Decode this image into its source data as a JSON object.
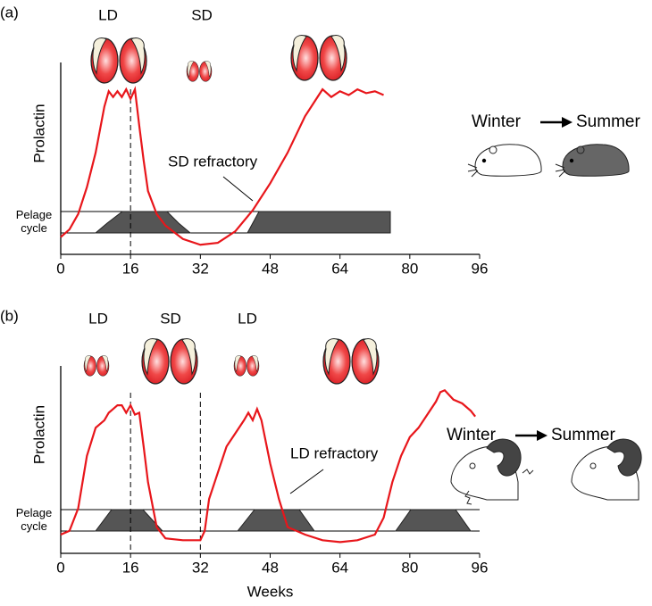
{
  "chart_data": [
    {
      "type": "line",
      "panel": "(a)",
      "ylabel": "Prolactin",
      "pelage_label": [
        "Pelage",
        "cycle"
      ],
      "photoperiods": [
        "LD",
        "SD"
      ],
      "annotation": "SD refractory",
      "seasons": [
        "Winter",
        "Summer"
      ],
      "xlim": [
        0,
        96
      ],
      "xticks": [
        0,
        16,
        32,
        48,
        64,
        80,
        96
      ],
      "ylim": [
        0,
        100
      ],
      "vlines": [
        16
      ],
      "series": [
        {
          "color": "#e8161b",
          "x": [
            0,
            2,
            4,
            6,
            8,
            10,
            11,
            12,
            13,
            14,
            15,
            16,
            17,
            18,
            19,
            20,
            22,
            24,
            28,
            32,
            36,
            40,
            44,
            48,
            52,
            56,
            58,
            60,
            62,
            64,
            66,
            68,
            70,
            72,
            74
          ],
          "values": [
            9,
            13,
            21,
            35,
            53,
            77,
            85,
            82,
            85,
            82,
            86,
            81,
            86,
            67,
            49,
            33,
            21,
            15,
            8,
            5,
            6,
            12,
            23,
            37,
            53,
            72,
            79,
            86,
            82,
            85,
            83,
            86,
            84,
            85,
            83
          ]
        }
      ]
    },
    {
      "type": "line",
      "panel": "(b)",
      "ylabel": "Prolactin",
      "xlabel": "Weeks",
      "pelage_label": [
        "Pelage",
        "cycle"
      ],
      "photoperiods": [
        "LD",
        "SD",
        "LD"
      ],
      "annotation": "LD refractory",
      "seasons": [
        "Winter",
        "Summer"
      ],
      "xlim": [
        0,
        96
      ],
      "xticks": [
        0,
        16,
        32,
        48,
        64,
        80,
        96
      ],
      "ylim": [
        0,
        100
      ],
      "vlines": [
        16,
        32
      ],
      "series": [
        {
          "color": "#e8161b",
          "x": [
            0,
            2,
            4,
            6,
            8,
            10,
            11,
            12,
            13,
            14,
            15,
            16,
            17,
            18,
            19,
            20,
            22,
            24,
            28,
            32,
            33,
            34,
            36,
            38,
            40,
            42,
            43,
            44,
            45,
            46,
            48,
            50,
            52,
            56,
            60,
            64,
            68,
            72,
            74,
            76,
            78,
            80,
            82,
            84,
            86,
            87,
            88,
            90,
            92,
            94,
            95
          ],
          "values": [
            10,
            12,
            24,
            52,
            67,
            71,
            75,
            77,
            79,
            79,
            75,
            79,
            74,
            75,
            57,
            38,
            14,
            8,
            7,
            7,
            12,
            29,
            43,
            57,
            64,
            71,
            75,
            71,
            77,
            71,
            48,
            29,
            14,
            10,
            7,
            6,
            7,
            10,
            19,
            38,
            52,
            62,
            67,
            74,
            81,
            86,
            87,
            82,
            80,
            76,
            73
          ]
        }
      ]
    }
  ]
}
